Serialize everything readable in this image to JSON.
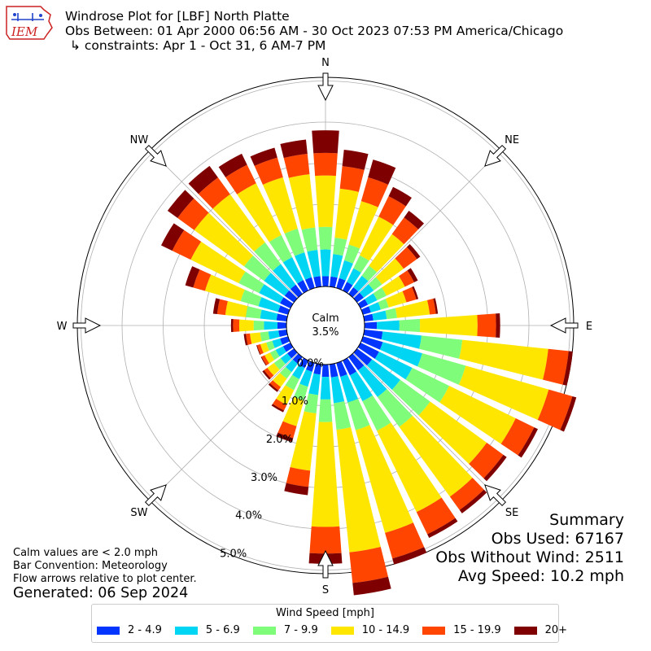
{
  "logo": {
    "text": "IEM"
  },
  "header": {
    "line1": "Windrose Plot for [LBF] North Platte",
    "line2": "Obs Between: 01 Apr 2000 06:56 AM - 30 Oct 2023 07:53 PM America/Chicago",
    "line3": "↳ constraints: Apr 1 - Oct 31, 6 AM-7 PM"
  },
  "notes": {
    "calm_note": "Calm values are < 2.0 mph",
    "bar_convention": "Bar Convention: Meteorology",
    "flow_arrows": "Flow arrows relative to plot center.",
    "generated": "Generated: 06 Sep 2024"
  },
  "summary": {
    "heading": "Summary",
    "obs_used": "Obs Used: 67167",
    "obs_without_wind": "Obs Without Wind: 2511",
    "avg_speed": "Avg Speed: 10.2 mph"
  },
  "chart_data": {
    "type": "windrose",
    "calm_label": "Calm",
    "calm_value": "3.5%",
    "calm_percent": 3.5,
    "legend_title": "Wind Speed [mph]",
    "compass_labels": [
      "N",
      "NE",
      "E",
      "SE",
      "S",
      "SW",
      "W",
      "NW"
    ],
    "radial_ticks": [
      {
        "value": 0.0,
        "label": "0.0%"
      },
      {
        "value": 1.0,
        "label": "1.0%"
      },
      {
        "value": 2.0,
        "label": "2.0%"
      },
      {
        "value": 3.0,
        "label": "3.0%"
      },
      {
        "value": 4.0,
        "label": "4.0%"
      },
      {
        "value": 5.0,
        "label": "5.0%"
      }
    ],
    "bins": [
      {
        "label": "2 - 4.9",
        "color": "#0335ff"
      },
      {
        "label": "5 - 6.9",
        "color": "#00d6f3"
      },
      {
        "label": "7 - 9.9",
        "color": "#7ffc7a"
      },
      {
        "label": "10 - 14.9",
        "color": "#ffe600"
      },
      {
        "label": "15 - 19.9",
        "color": "#ff4500"
      },
      {
        "label": "20+",
        "color": "#7f0000"
      }
    ],
    "directions_deg": [
      0,
      10,
      20,
      30,
      40,
      50,
      60,
      70,
      80,
      90,
      100,
      110,
      120,
      130,
      140,
      150,
      160,
      170,
      180,
      190,
      200,
      210,
      220,
      230,
      240,
      250,
      260,
      270,
      280,
      290,
      300,
      310,
      320,
      330,
      340,
      350
    ],
    "cumulative": [
      [
        0.25,
        0.9,
        1.45,
        2.7,
        3.25,
        3.8
      ],
      [
        0.25,
        0.8,
        1.2,
        2.4,
        2.95,
        3.35
      ],
      [
        0.25,
        0.7,
        1.1,
        2.2,
        2.8,
        3.25
      ],
      [
        0.23,
        0.6,
        0.95,
        2.0,
        2.55,
        2.8
      ],
      [
        0.2,
        0.55,
        0.85,
        1.8,
        2.3,
        2.5
      ],
      [
        0.2,
        0.5,
        0.75,
        1.4,
        1.8,
        1.9
      ],
      [
        0.2,
        0.45,
        0.7,
        1.2,
        1.45,
        1.55
      ],
      [
        0.2,
        0.45,
        0.65,
        1.1,
        1.35,
        1.4
      ],
      [
        0.22,
        0.55,
        0.8,
        1.6,
        1.75,
        1.8
      ],
      [
        0.3,
        0.85,
        1.35,
        2.75,
        3.2,
        3.3
      ],
      [
        0.45,
        1.4,
        2.4,
        4.5,
        5.0,
        5.1
      ],
      [
        0.5,
        1.5,
        2.6,
        4.7,
        5.3,
        5.4
      ],
      [
        0.5,
        1.4,
        2.4,
        4.2,
        4.7,
        4.8
      ],
      [
        0.45,
        1.3,
        2.2,
        3.9,
        4.4,
        4.5
      ],
      [
        0.4,
        1.2,
        2.1,
        4.2,
        4.6,
        4.7
      ],
      [
        0.4,
        1.1,
        1.9,
        4.1,
        4.7,
        4.8
      ],
      [
        0.35,
        1.0,
        1.7,
        4.3,
        4.95,
        5.1
      ],
      [
        0.32,
        0.95,
        1.6,
        4.6,
        5.35,
        5.65
      ],
      [
        0.3,
        0.85,
        1.4,
        3.95,
        4.6,
        4.85
      ],
      [
        0.25,
        0.75,
        1.2,
        2.6,
        3.0,
        3.2
      ],
      [
        0.22,
        0.6,
        0.95,
        1.6,
        1.9,
        2.0
      ],
      [
        0.2,
        0.5,
        0.8,
        1.2,
        1.35,
        1.4
      ],
      [
        0.2,
        0.45,
        0.65,
        0.9,
        1.0,
        1.05
      ],
      [
        0.2,
        0.4,
        0.6,
        0.8,
        0.9,
        0.95
      ],
      [
        0.2,
        0.4,
        0.55,
        0.7,
        0.78,
        0.8
      ],
      [
        0.2,
        0.4,
        0.55,
        0.7,
        0.78,
        0.8
      ],
      [
        0.2,
        0.45,
        0.65,
        0.9,
        1.0,
        1.05
      ],
      [
        0.22,
        0.55,
        0.8,
        1.15,
        1.3,
        1.35
      ],
      [
        0.25,
        0.65,
        1.0,
        1.5,
        1.7,
        1.8
      ],
      [
        0.25,
        0.75,
        1.2,
        2.1,
        2.4,
        2.6
      ],
      [
        0.28,
        0.85,
        1.4,
        2.7,
        3.2,
        3.5
      ],
      [
        0.28,
        0.9,
        1.5,
        3.0,
        3.5,
        3.8
      ],
      [
        0.28,
        0.9,
        1.55,
        3.0,
        3.5,
        3.85
      ],
      [
        0.28,
        0.9,
        1.5,
        2.9,
        3.4,
        3.7
      ],
      [
        0.27,
        0.9,
        1.5,
        2.8,
        3.3,
        3.55
      ],
      [
        0.26,
        0.9,
        1.45,
        2.75,
        3.25,
        3.6
      ]
    ]
  }
}
